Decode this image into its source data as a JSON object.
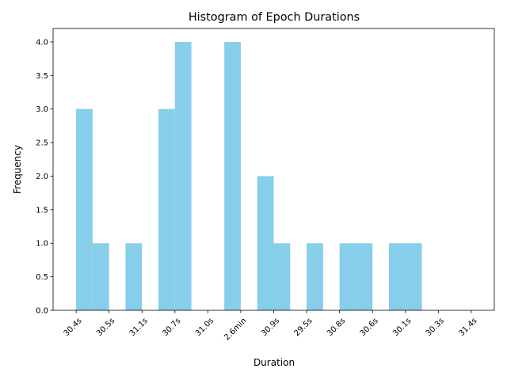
{
  "chart_data": {
    "type": "bar",
    "title": "Histogram of Epoch Durations",
    "xlabel": "Duration",
    "ylabel": "Frequency",
    "x_tick_labels": [
      "30.4s",
      "30.5s",
      "31.1s",
      "30.7s",
      "31.0s",
      "2.6min",
      "30.9s",
      "29.5s",
      "30.8s",
      "30.6s",
      "30.1s",
      "30.3s",
      "31.4s"
    ],
    "y_tick_labels": [
      "0.0",
      "0.5",
      "1.0",
      "1.5",
      "2.0",
      "2.5",
      "3.0",
      "3.5",
      "4.0"
    ],
    "x_range": [
      -0.7,
      12.7
    ],
    "ylim": [
      0,
      4.2
    ],
    "bins": [
      {
        "start": 0,
        "end": 0.5,
        "count": 3
      },
      {
        "start": 0.5,
        "end": 1.0,
        "count": 1
      },
      {
        "start": 1.5,
        "end": 2.0,
        "count": 1
      },
      {
        "start": 2.5,
        "end": 3.0,
        "count": 3
      },
      {
        "start": 3.0,
        "end": 3.5,
        "count": 4
      },
      {
        "start": 4.5,
        "end": 5.0,
        "count": 4
      },
      {
        "start": 5.5,
        "end": 6.0,
        "count": 2
      },
      {
        "start": 6.0,
        "end": 6.5,
        "count": 1
      },
      {
        "start": 7.0,
        "end": 7.5,
        "count": 1
      },
      {
        "start": 8.0,
        "end": 8.5,
        "count": 1
      },
      {
        "start": 8.5,
        "end": 9.0,
        "count": 1
      },
      {
        "start": 9.5,
        "end": 10.0,
        "count": 1
      },
      {
        "start": 10.0,
        "end": 10.5,
        "count": 1
      }
    ],
    "bar_color": "#87ceeb",
    "grid": false
  }
}
